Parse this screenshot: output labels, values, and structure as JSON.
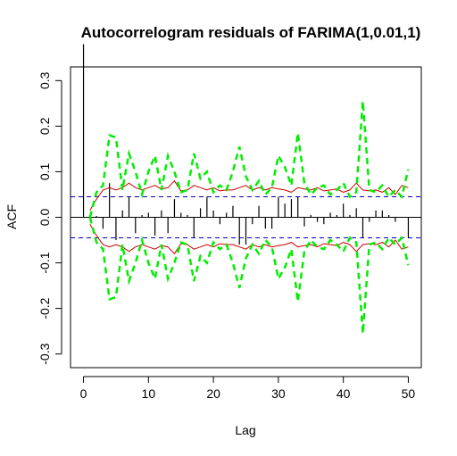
{
  "chart_data": {
    "type": "bar",
    "title": "Autocorrelogram residuals of FARIMA(1,0.01,1)",
    "xlabel": "Lag",
    "ylabel": "ACF",
    "xlim": [
      -2,
      52
    ],
    "ylim": [
      -0.33,
      0.33
    ],
    "x_ticks": [
      0,
      10,
      20,
      30,
      40,
      50
    ],
    "x_tick_labels": [
      "0",
      "10",
      "20",
      "30",
      "40",
      "50"
    ],
    "y_ticks": [
      -0.3,
      -0.2,
      -0.1,
      0.0,
      0.1,
      0.2,
      0.3
    ],
    "y_tick_labels": [
      "-0.3",
      "-0.2",
      "-0.1",
      "0.0",
      "0.1",
      "0.2",
      "0.3"
    ],
    "ci_level": 0.045,
    "colors": {
      "acf_bars": "#000000",
      "ci_line": "#0000cc",
      "bound_line": "#cc0000",
      "dashed_bound": "#00ee00"
    },
    "lags": [
      0,
      1,
      2,
      3,
      4,
      5,
      6,
      7,
      8,
      9,
      10,
      11,
      12,
      13,
      14,
      15,
      16,
      17,
      18,
      19,
      20,
      21,
      22,
      23,
      24,
      25,
      26,
      27,
      28,
      29,
      30,
      31,
      32,
      33,
      34,
      35,
      36,
      37,
      38,
      39,
      40,
      41,
      42,
      43,
      44,
      45,
      46,
      47,
      48,
      49,
      50
    ],
    "acf": [
      1.0,
      -0.005,
      0.003,
      -0.025,
      0.075,
      -0.05,
      0.015,
      0.045,
      -0.035,
      0.005,
      0.01,
      -0.04,
      0.015,
      -0.035,
      0.04,
      0.01,
      0.005,
      -0.045,
      0.02,
      0.045,
      0.015,
      -0.015,
      0.01,
      0.025,
      -0.06,
      -0.06,
      -0.015,
      0.025,
      -0.025,
      -0.025,
      0.045,
      0.03,
      0.04,
      0.045,
      -0.02,
      0.005,
      -0.01,
      -0.015,
      0.01,
      0.005,
      0.03,
      0.005,
      0.02,
      -0.045,
      -0.01,
      0.015,
      0.015,
      0.005,
      -0.01,
      0.0,
      -0.045
    ],
    "red_bound": [
      null,
      0.015,
      0.04,
      0.06,
      0.065,
      0.06,
      0.065,
      0.075,
      0.065,
      0.06,
      0.065,
      0.07,
      0.062,
      0.065,
      0.08,
      0.058,
      0.06,
      0.07,
      0.065,
      0.06,
      0.065,
      0.058,
      0.06,
      0.06,
      0.065,
      0.07,
      0.06,
      0.065,
      0.06,
      0.065,
      0.062,
      0.06,
      0.055,
      0.065,
      0.062,
      0.06,
      0.065,
      0.058,
      0.06,
      0.062,
      0.055,
      0.06,
      0.075,
      0.06,
      0.058,
      0.06,
      0.055,
      0.065,
      0.05,
      0.07,
      0.065
    ],
    "green_bound": [
      null,
      0.0,
      0.055,
      0.07,
      0.18,
      0.175,
      0.06,
      0.14,
      0.1,
      0.05,
      0.1,
      0.135,
      0.06,
      0.135,
      0.1,
      0.055,
      0.06,
      0.14,
      0.085,
      0.1,
      0.055,
      0.07,
      0.06,
      0.1,
      0.155,
      0.09,
      0.06,
      0.08,
      0.05,
      0.065,
      0.135,
      0.11,
      0.07,
      0.185,
      0.075,
      0.05,
      0.065,
      0.07,
      0.05,
      0.06,
      0.075,
      0.045,
      0.055,
      0.255,
      0.06,
      0.055,
      0.07,
      0.045,
      0.06,
      0.045,
      0.105
    ]
  }
}
